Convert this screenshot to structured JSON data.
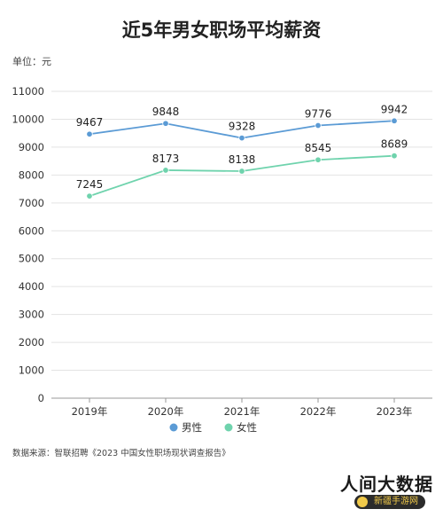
{
  "chart_data": {
    "type": "line",
    "title": "近5年男女职场平均薪资",
    "unit_label": "单位：元",
    "categories": [
      "2019年",
      "2020年",
      "2021年",
      "2022年",
      "2023年"
    ],
    "series": [
      {
        "name": "男性",
        "color": "#5b9bd5",
        "values": [
          9467,
          9848,
          9328,
          9776,
          9942
        ]
      },
      {
        "name": "女性",
        "color": "#6fd3ad",
        "values": [
          7245,
          8173,
          8138,
          8545,
          8689
        ]
      }
    ],
    "yticks": [
      0,
      1000,
      2000,
      3000,
      4000,
      5000,
      6000,
      7000,
      8000,
      9000,
      10000,
      11000
    ],
    "ylim": [
      0,
      11000
    ],
    "grid": true,
    "legend": "bottom",
    "source": "数据来源：智联招聘《2023 中国女性职场现状调查报告》"
  },
  "watermark": {
    "text": "人间大数据",
    "badge": "新疆手游网"
  }
}
